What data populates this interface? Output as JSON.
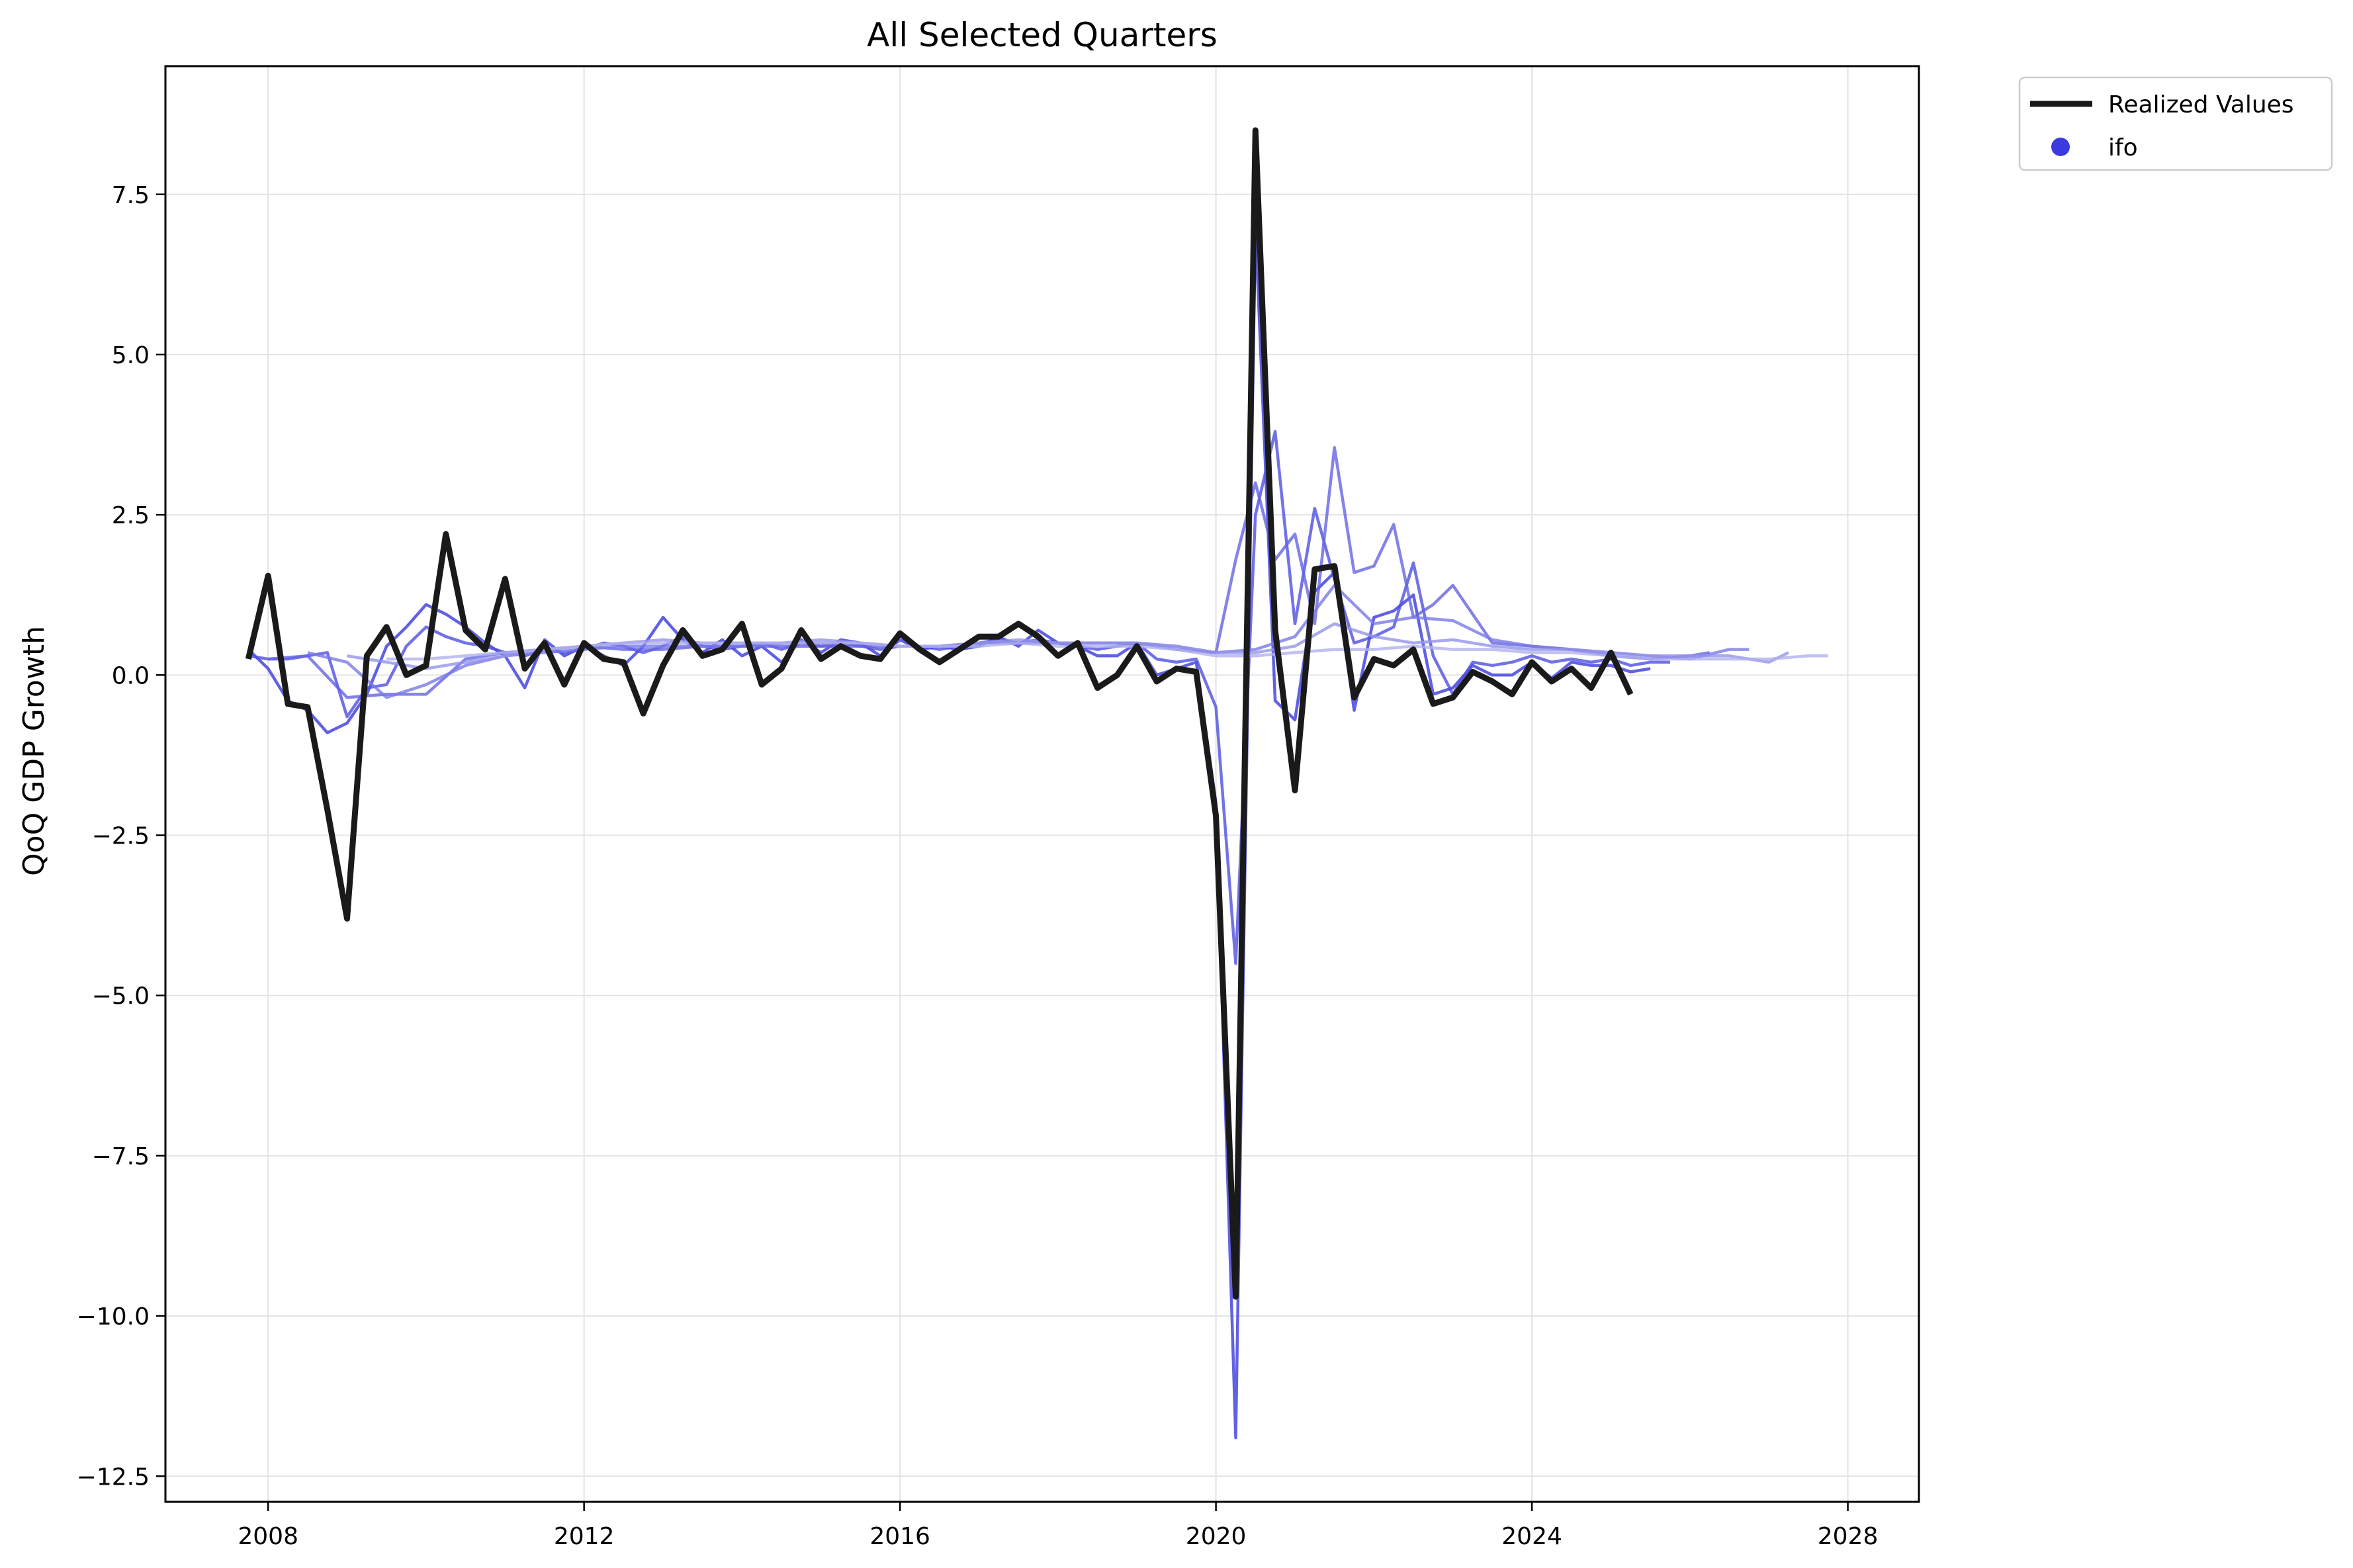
{
  "chart_data": {
    "type": "line",
    "title": "All Selected Quarters",
    "xlabel": "",
    "ylabel": "QoQ GDP Growth",
    "xlim": [
      2006.7,
      2028.9
    ],
    "ylim": [
      -12.9,
      9.5
    ],
    "x_ticks": [
      2008,
      2012,
      2016,
      2020,
      2024,
      2028
    ],
    "y_ticks": [
      7.5,
      5.0,
      2.5,
      0.0,
      -2.5,
      -5.0,
      -7.5,
      -10.0,
      -12.5
    ],
    "y_tick_labels": [
      "7.5",
      "5.0",
      "2.5",
      "0.0",
      "−2.5",
      "−5.0",
      "−7.5",
      "−10.0",
      "−12.5"
    ],
    "grid": true,
    "legend_position": "outside-top-right",
    "legend": [
      {
        "label": "Realized Values",
        "marker": "line",
        "color": "#1a1a1a"
      },
      {
        "label": "ifo",
        "marker": "dot",
        "color": "#3a3adf"
      }
    ],
    "colors": {
      "realized": "#1a1a1a",
      "forecast_dark": "#3a3ade",
      "forecast_light": "#c5c5f1"
    },
    "realized": {
      "name": "Realized Values",
      "x": [
        2007.75,
        2008.0,
        2008.25,
        2008.5,
        2008.75,
        2009.0,
        2009.25,
        2009.5,
        2009.75,
        2010.0,
        2010.25,
        2010.5,
        2010.75,
        2011.0,
        2011.25,
        2011.5,
        2011.75,
        2012.0,
        2012.25,
        2012.5,
        2012.75,
        2013.0,
        2013.25,
        2013.5,
        2013.75,
        2014.0,
        2014.25,
        2014.5,
        2014.75,
        2015.0,
        2015.25,
        2015.5,
        2015.75,
        2016.0,
        2016.25,
        2016.5,
        2016.75,
        2017.0,
        2017.25,
        2017.5,
        2017.75,
        2018.0,
        2018.25,
        2018.5,
        2018.75,
        2019.0,
        2019.25,
        2019.5,
        2019.75,
        2020.0,
        2020.25,
        2020.5,
        2020.75,
        2021.0,
        2021.25,
        2021.5,
        2021.75,
        2022.0,
        2022.25,
        2022.5,
        2022.75,
        2023.0,
        2023.25,
        2023.5,
        2023.75,
        2024.0,
        2024.25,
        2024.5,
        2024.75,
        2025.0,
        2025.25
      ],
      "y": [
        0.25,
        1.55,
        -0.45,
        -0.5,
        -2.1,
        -3.8,
        0.3,
        0.75,
        0.0,
        0.15,
        2.2,
        0.7,
        0.4,
        1.5,
        0.1,
        0.5,
        -0.15,
        0.5,
        0.25,
        0.2,
        -0.6,
        0.15,
        0.7,
        0.3,
        0.4,
        0.8,
        -0.15,
        0.1,
        0.7,
        0.25,
        0.45,
        0.3,
        0.25,
        0.65,
        0.4,
        0.2,
        0.4,
        0.6,
        0.6,
        0.8,
        0.6,
        0.3,
        0.5,
        -0.2,
        0.0,
        0.45,
        -0.1,
        0.1,
        0.05,
        -2.2,
        -9.7,
        8.5,
        0.7,
        -1.8,
        1.65,
        1.7,
        -0.35,
        0.25,
        0.15,
        0.4,
        -0.45,
        -0.35,
        0.05,
        -0.1,
        -0.3,
        0.2,
        -0.1,
        0.1,
        -0.2,
        0.35,
        -0.3
      ]
    },
    "series": [
      {
        "x": [
          2007.75,
          2008.0,
          2008.25,
          2008.5,
          2008.75,
          2009.0,
          2009.25,
          2009.5,
          2009.75,
          2010.0,
          2010.25,
          2010.5,
          2010.75,
          2011.0,
          2011.25,
          2011.5,
          2011.75,
          2012.0,
          2012.25,
          2012.5,
          2012.75,
          2013.0,
          2013.25,
          2013.5,
          2013.75,
          2014.0,
          2014.25,
          2014.5,
          2014.75,
          2015.0,
          2015.25,
          2015.5,
          2015.75,
          2016.0,
          2016.25,
          2016.5,
          2016.75,
          2017.0,
          2017.25,
          2017.5,
          2017.75,
          2018.0,
          2018.25,
          2018.5,
          2018.75,
          2019.0,
          2019.25,
          2019.5,
          2019.75,
          2020.0,
          2020.25,
          2020.5,
          2020.75,
          2021.0,
          2021.25,
          2021.5,
          2021.75,
          2022.0,
          2022.25,
          2022.5,
          2022.75,
          2023.0,
          2023.25,
          2023.5,
          2023.75,
          2024.0,
          2024.25,
          2024.5,
          2024.75,
          2025.0,
          2025.25,
          2025.5
        ],
        "y": [
          0.4,
          0.1,
          -0.4,
          -0.55,
          -0.9,
          -0.75,
          -0.3,
          0.45,
          0.75,
          1.1,
          0.95,
          0.75,
          0.5,
          0.3,
          -0.2,
          0.55,
          0.3,
          0.45,
          0.3,
          0.15,
          0.45,
          0.9,
          0.55,
          0.35,
          0.55,
          0.3,
          0.45,
          0.2,
          0.55,
          0.35,
          0.55,
          0.5,
          0.3,
          0.55,
          0.4,
          0.45,
          0.4,
          0.45,
          0.6,
          0.45,
          0.7,
          0.5,
          0.45,
          0.3,
          0.3,
          0.5,
          0.0,
          0.1,
          0.2,
          -2.0,
          -11.9,
          7.0,
          -0.4,
          -0.7,
          1.3,
          1.6,
          -0.55,
          0.9,
          1.0,
          1.25,
          -0.3,
          -0.2,
          0.15,
          0.0,
          0.0,
          0.2,
          -0.05,
          0.2,
          0.15,
          0.15,
          0.05,
          0.1
        ],
        "shade": 0.0
      },
      {
        "x": [
          2007.75,
          2008.0,
          2008.25,
          2008.5,
          2008.75,
          2009.0,
          2009.25,
          2009.5,
          2009.75,
          2010.0,
          2010.25,
          2010.5,
          2010.75,
          2011.0,
          2011.25,
          2011.5,
          2011.75,
          2012.0,
          2012.25,
          2012.5,
          2012.75,
          2013.0,
          2013.25,
          2013.5,
          2013.75,
          2014.0,
          2014.25,
          2014.5,
          2014.75,
          2015.0,
          2015.25,
          2015.5,
          2015.75,
          2016.0,
          2016.25,
          2016.5,
          2016.75,
          2017.0,
          2017.25,
          2017.5,
          2017.75,
          2018.0,
          2018.25,
          2018.5,
          2018.75,
          2019.0,
          2019.25,
          2019.5,
          2019.75,
          2020.0,
          2020.25,
          2020.5,
          2020.75,
          2021.0,
          2021.25,
          2021.5,
          2021.75,
          2022.0,
          2022.25,
          2022.5,
          2022.75,
          2023.0,
          2023.25,
          2023.5,
          2023.75,
          2024.0,
          2024.25,
          2024.5,
          2024.75,
          2025.0,
          2025.25,
          2025.5,
          2025.75
        ],
        "y": [
          0.3,
          0.25,
          0.25,
          0.3,
          0.35,
          -0.65,
          -0.2,
          -0.15,
          0.45,
          0.75,
          0.6,
          0.5,
          0.45,
          0.35,
          0.3,
          0.4,
          0.35,
          0.4,
          0.5,
          0.45,
          0.35,
          0.45,
          0.6,
          0.45,
          0.4,
          0.45,
          0.5,
          0.4,
          0.5,
          0.45,
          0.5,
          0.45,
          0.4,
          0.45,
          0.45,
          0.4,
          0.45,
          0.5,
          0.55,
          0.5,
          0.55,
          0.5,
          0.45,
          0.4,
          0.45,
          0.5,
          0.25,
          0.2,
          0.25,
          -0.5,
          -4.5,
          2.5,
          3.8,
          0.8,
          2.6,
          1.5,
          0.5,
          0.6,
          0.75,
          1.75,
          0.3,
          -0.3,
          0.2,
          0.15,
          0.2,
          0.3,
          0.2,
          0.25,
          0.2,
          0.25,
          0.15,
          0.2,
          0.2
        ],
        "shade": 0.15
      },
      {
        "x": [
          2008.0,
          2008.5,
          2009.0,
          2009.5,
          2010.0,
          2010.5,
          2011.0,
          2011.5,
          2012.0,
          2012.5,
          2013.0,
          2013.5,
          2014.0,
          2014.5,
          2015.0,
          2015.5,
          2016.0,
          2016.5,
          2017.0,
          2017.5,
          2018.0,
          2018.5,
          2019.0,
          2019.5,
          2020.0,
          2020.25,
          2020.5,
          2020.75,
          2021.0,
          2021.25,
          2021.5,
          2021.75,
          2022.0,
          2022.25,
          2022.5,
          2022.75,
          2023.0,
          2023.5,
          2024.0,
          2024.5,
          2025.0,
          2025.5,
          2026.0,
          2026.25
        ],
        "y": [
          0.25,
          0.3,
          -0.35,
          -0.3,
          -0.3,
          0.25,
          0.35,
          0.4,
          0.45,
          0.4,
          0.4,
          0.45,
          0.45,
          0.45,
          0.45,
          0.45,
          0.45,
          0.45,
          0.5,
          0.5,
          0.5,
          0.5,
          0.5,
          0.4,
          0.35,
          1.8,
          3.0,
          1.8,
          2.2,
          0.8,
          3.55,
          1.6,
          1.7,
          2.35,
          0.9,
          1.1,
          1.4,
          0.5,
          0.45,
          0.4,
          0.3,
          0.25,
          0.3,
          0.35
        ],
        "shade": 0.3
      },
      {
        "x": [
          2008.5,
          2009.0,
          2009.5,
          2010.0,
          2010.5,
          2011.0,
          2011.5,
          2012.0,
          2012.5,
          2013.0,
          2013.5,
          2014.0,
          2014.5,
          2015.0,
          2015.5,
          2016.0,
          2016.5,
          2017.0,
          2017.5,
          2018.0,
          2018.5,
          2019.0,
          2019.5,
          2020.0,
          2020.5,
          2021.0,
          2021.5,
          2022.0,
          2022.5,
          2023.0,
          2023.5,
          2024.0,
          2024.5,
          2025.0,
          2025.5,
          2026.0,
          2026.5,
          2026.75
        ],
        "y": [
          0.35,
          0.2,
          -0.35,
          -0.15,
          0.15,
          0.3,
          0.35,
          0.4,
          0.45,
          0.45,
          0.45,
          0.45,
          0.5,
          0.5,
          0.5,
          0.45,
          0.45,
          0.5,
          0.5,
          0.5,
          0.5,
          0.5,
          0.45,
          0.35,
          0.4,
          0.6,
          1.4,
          0.8,
          0.9,
          0.85,
          0.55,
          0.45,
          0.4,
          0.35,
          0.3,
          0.25,
          0.4,
          0.4
        ],
        "shade": 0.45
      },
      {
        "x": [
          2009.0,
          2009.5,
          2010.0,
          2010.5,
          2011.0,
          2011.5,
          2012.0,
          2012.5,
          2013.0,
          2013.5,
          2014.0,
          2014.5,
          2015.0,
          2015.5,
          2016.0,
          2016.5,
          2017.0,
          2017.5,
          2018.0,
          2018.5,
          2019.0,
          2019.5,
          2020.0,
          2020.5,
          2021.0,
          2021.5,
          2022.0,
          2022.5,
          2023.0,
          2023.5,
          2024.0,
          2024.5,
          2025.0,
          2025.5,
          2026.0,
          2026.5,
          2027.0,
          2027.25
        ],
        "y": [
          0.3,
          0.2,
          0.1,
          0.2,
          0.3,
          0.4,
          0.45,
          0.5,
          0.55,
          0.5,
          0.5,
          0.5,
          0.55,
          0.5,
          0.45,
          0.45,
          0.5,
          0.55,
          0.5,
          0.5,
          0.5,
          0.45,
          0.35,
          0.35,
          0.45,
          0.8,
          0.6,
          0.5,
          0.55,
          0.45,
          0.4,
          0.4,
          0.35,
          0.3,
          0.3,
          0.3,
          0.2,
          0.35
        ],
        "shade": 0.65
      },
      {
        "x": [
          2009.5,
          2010.0,
          2010.5,
          2011.0,
          2011.5,
          2012.0,
          2012.5,
          2013.0,
          2013.5,
          2014.0,
          2014.5,
          2015.0,
          2015.5,
          2016.0,
          2016.5,
          2017.0,
          2017.5,
          2018.0,
          2018.5,
          2019.0,
          2019.5,
          2020.0,
          2020.5,
          2021.0,
          2021.5,
          2022.0,
          2022.5,
          2023.0,
          2023.5,
          2024.0,
          2024.5,
          2025.0,
          2025.5,
          2026.0,
          2026.5,
          2027.0,
          2027.5,
          2027.75
        ],
        "y": [
          0.25,
          0.25,
          0.3,
          0.35,
          0.4,
          0.45,
          0.5,
          0.5,
          0.5,
          0.5,
          0.5,
          0.5,
          0.5,
          0.45,
          0.45,
          0.45,
          0.5,
          0.45,
          0.45,
          0.45,
          0.4,
          0.3,
          0.3,
          0.35,
          0.4,
          0.4,
          0.45,
          0.4,
          0.4,
          0.35,
          0.35,
          0.3,
          0.25,
          0.25,
          0.25,
          0.25,
          0.3,
          0.3
        ],
        "shade": 0.85
      }
    ]
  }
}
